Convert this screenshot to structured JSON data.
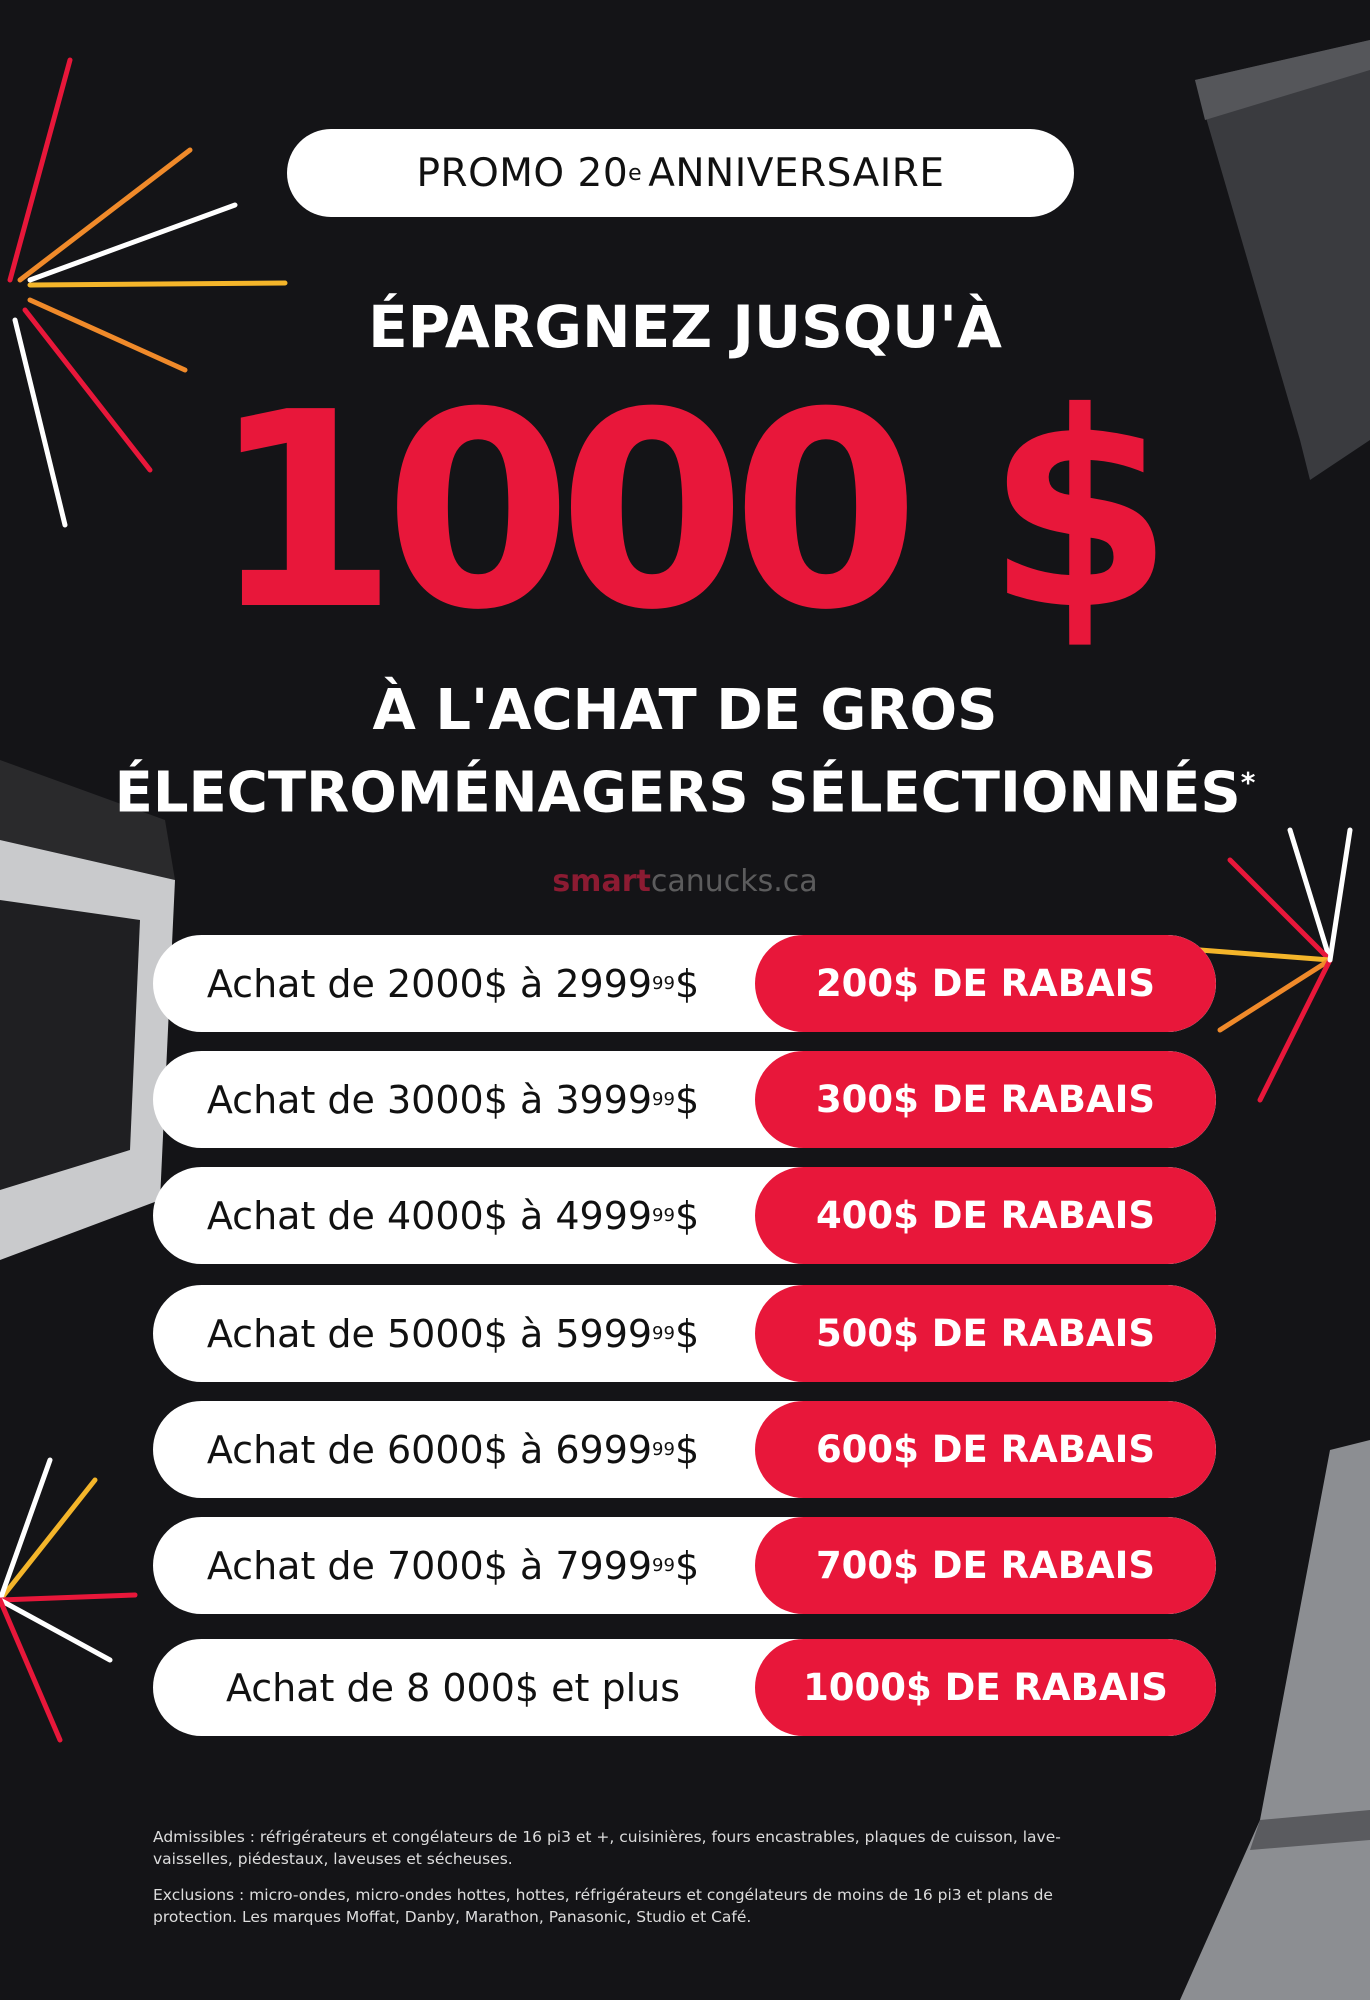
{
  "badge": {
    "text": "PROMO 20",
    "sup": "e",
    "rest": "ANNIVERSAIRE"
  },
  "headline": "ÉPARGNEZ JUSQU'À",
  "amount": "1000 $",
  "subline1": "À L'ACHAT DE GROS",
  "subline2": "ÉLECTROMÉNAGERS SÉLECTIONNÉS",
  "asterisk": "*",
  "tiers": [
    {
      "range": "Achat de 2000$ à 2999",
      "cents": "99",
      "suffix": "$",
      "discount": "200$ DE RABAIS"
    },
    {
      "range": "Achat de 3000$ à 3999",
      "cents": "99",
      "suffix": "$",
      "discount": "300$ DE RABAIS"
    },
    {
      "range": "Achat de 4000$ à 4999",
      "cents": "99",
      "suffix": "$",
      "discount": "400$ DE RABAIS"
    },
    {
      "range": "Achat de 5000$ à 5999",
      "cents": "99",
      "suffix": "$",
      "discount": "500$ DE RABAIS"
    },
    {
      "range": "Achat de 6000$ à 6999",
      "cents": "99",
      "suffix": "$",
      "discount": "600$ DE RABAIS"
    },
    {
      "range": "Achat de 7000$ à 7999",
      "cents": "99",
      "suffix": "$",
      "discount": "700$ DE RABAIS"
    },
    {
      "range": "Achat de 8 000$ et plus",
      "cents": "",
      "suffix": "",
      "discount": "1000$ DE RABAIS"
    }
  ],
  "watermark": {
    "a": "smart",
    "b": "canucks.ca"
  },
  "footer": {
    "eligible": "Admissibles : réfrigérateurs et congélateurs de 16 pi3 et +, cuisinières, fours encastrables, plaques de cuisson, lave-vaisselles, piédestaux, laveuses et sécheuses.",
    "exclusions": "Exclusions : micro-ondes, micro-ondes hottes, hottes, réfrigérateurs et congélateurs de moins de 16 pi3 et plans de protection. Les marques Moffat, Danby, Marathon, Panasonic, Studio et Café."
  },
  "colors": {
    "background": "#141417",
    "accent": "#e8173a"
  }
}
